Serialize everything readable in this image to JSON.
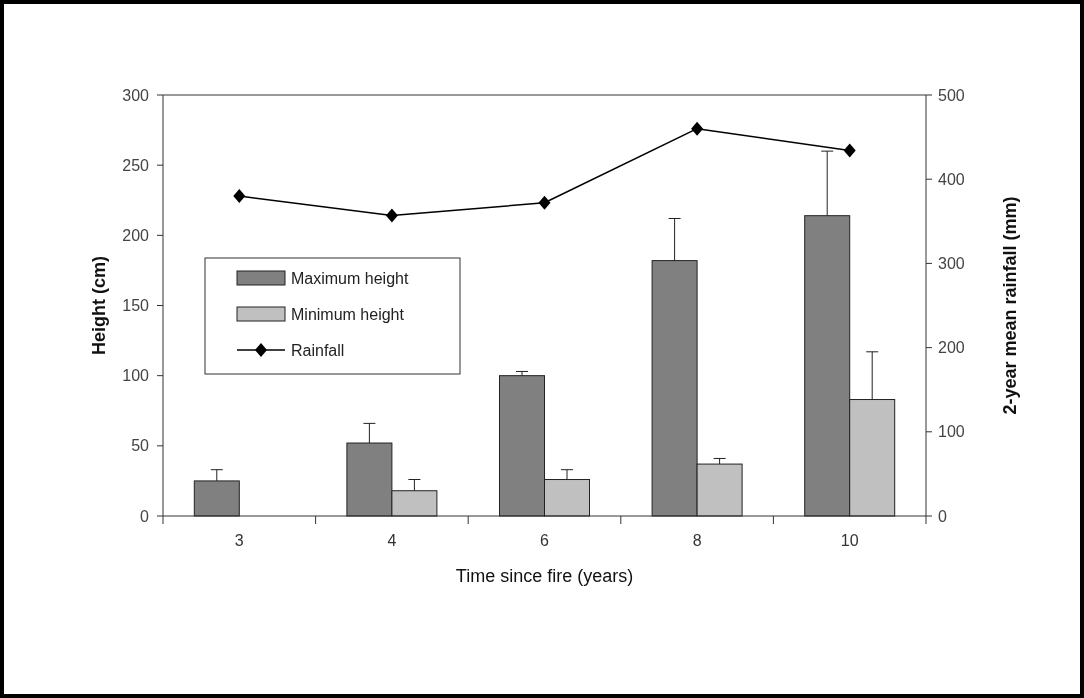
{
  "chart_data": {
    "type": "bar",
    "categories": [
      "3",
      "4",
      "6",
      "8",
      "10"
    ],
    "xlabel": "Time since fire (years)",
    "ylabel": "Height (cm)",
    "y2label": "2-year mean rainfall (mm)",
    "ylim": [
      0,
      300
    ],
    "yticks": [
      0,
      50,
      100,
      150,
      200,
      250,
      300
    ],
    "y2lim": [
      0,
      500
    ],
    "y2ticks": [
      0,
      100,
      200,
      300,
      400,
      500
    ],
    "grid": false,
    "legend": "left",
    "series": [
      {
        "name": "Maximum height",
        "color": "#808080",
        "values": [
          25,
          52,
          100,
          182,
          214
        ],
        "errors": [
          [
            25,
            33
          ],
          [
            52,
            66
          ],
          [
            100,
            103
          ],
          [
            182,
            212
          ],
          [
            214,
            260
          ]
        ]
      },
      {
        "name": "Minimum height",
        "color": "#c0c0c0",
        "values": [
          null,
          18,
          26,
          37,
          83
        ],
        "errors": [
          null,
          [
            18,
            26
          ],
          [
            26,
            33
          ],
          [
            37,
            41
          ],
          [
            83,
            117
          ]
        ]
      },
      {
        "name": "Rainfall",
        "type": "line",
        "axis": "y2",
        "color": "#000000",
        "marker": "diamond",
        "line_style": "solid",
        "values": [
          380,
          357,
          372,
          460,
          434
        ]
      }
    ]
  }
}
